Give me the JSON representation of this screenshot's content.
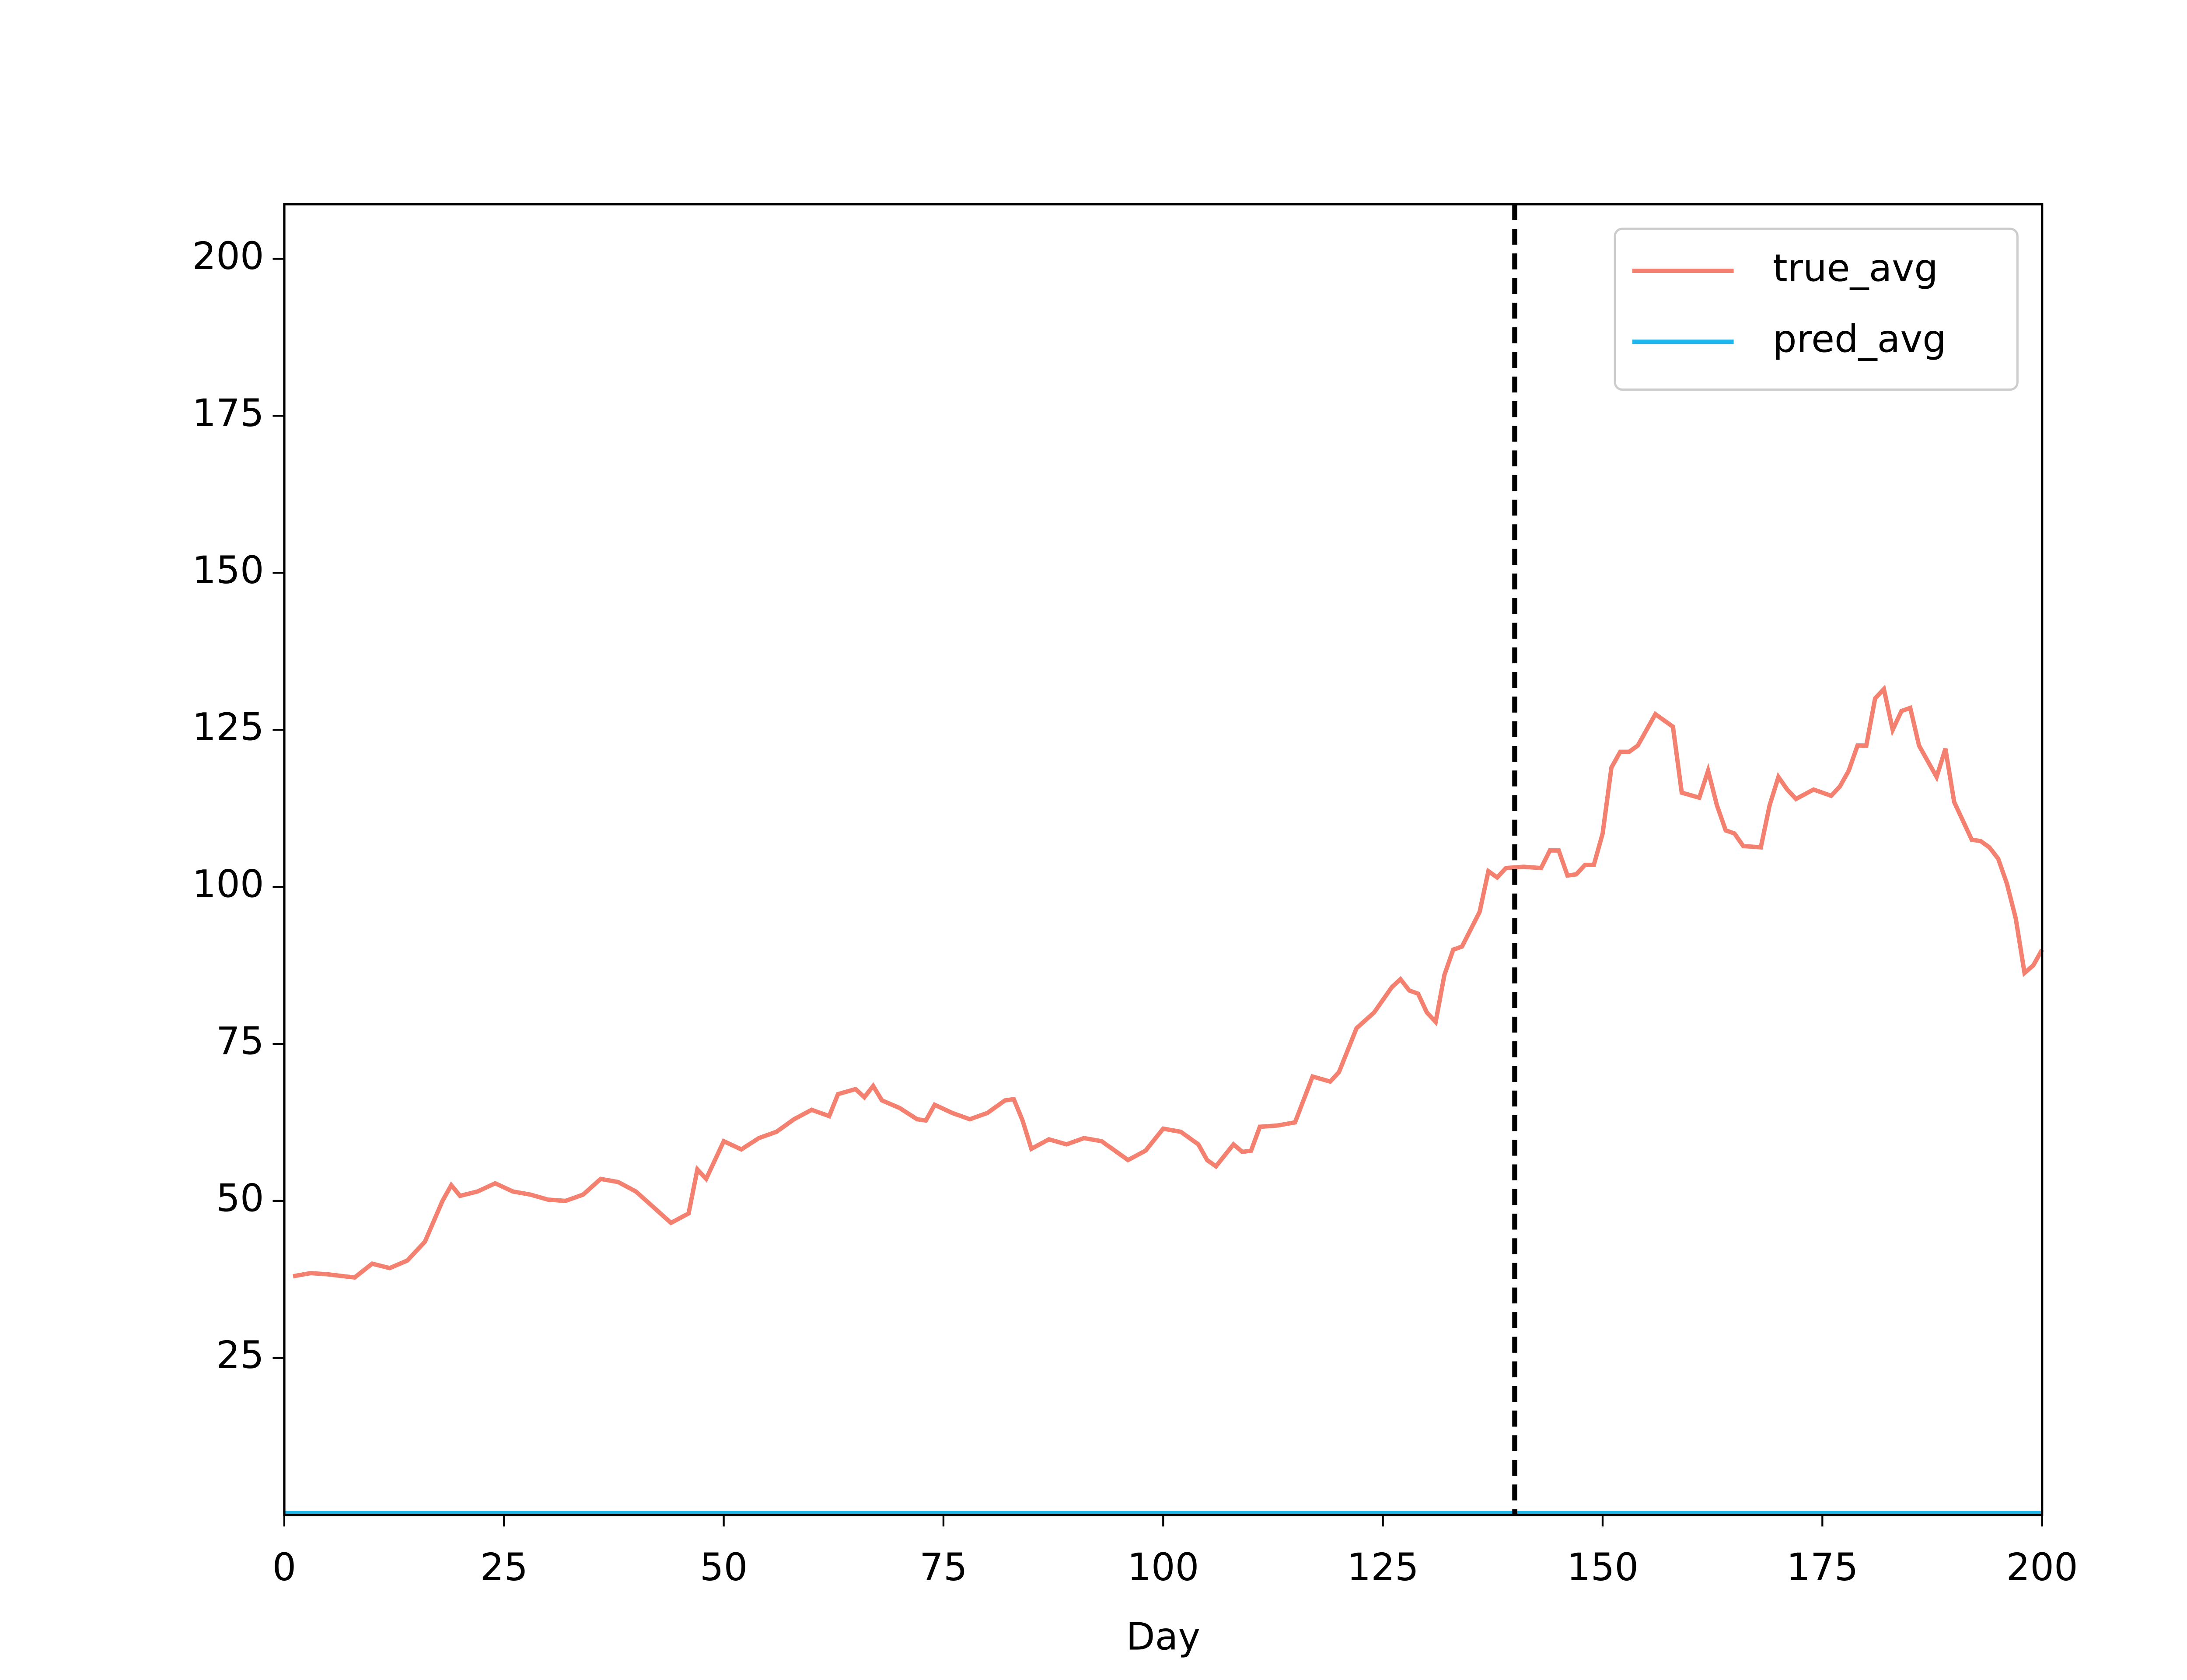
{
  "chart_data": {
    "type": "line",
    "x_label": "Day",
    "xlim": [
      0,
      200
    ],
    "xticks": [
      0,
      25,
      50,
      75,
      100,
      125,
      150,
      175,
      200
    ],
    "ylim": [
      0,
      208.7
    ],
    "yticks": [
      25,
      50,
      75,
      100,
      125,
      150,
      175,
      200
    ],
    "vline": 140,
    "vline_color": "#000000",
    "legend": "upper right",
    "series": [
      {
        "name": "true_avg",
        "color": "#f48070",
        "x": [
          1,
          3,
          5,
          8,
          10,
          12,
          14,
          16,
          18,
          19,
          20,
          22,
          24,
          26,
          28,
          30,
          32,
          34,
          36,
          38,
          40,
          42,
          44,
          46,
          47,
          48,
          50,
          52,
          54,
          56,
          58,
          60,
          62,
          63,
          65,
          66,
          67,
          68,
          70,
          72,
          73,
          74,
          76,
          78,
          80,
          82,
          83,
          84,
          85,
          87,
          89,
          91,
          93,
          95,
          96,
          98,
          100,
          102,
          104,
          105,
          106,
          108,
          109,
          110,
          111,
          113,
          115,
          117,
          119,
          120,
          122,
          124,
          126,
          127,
          128,
          129,
          130,
          131,
          132,
          133,
          134,
          136,
          137,
          138,
          139,
          141,
          143,
          144,
          145,
          146,
          147,
          148,
          149,
          150,
          151,
          152,
          153,
          154,
          156,
          158,
          159,
          161,
          162,
          163,
          164,
          165,
          166,
          168,
          169,
          170,
          171,
          172,
          174,
          176,
          177,
          178,
          179,
          180,
          181,
          182,
          183,
          184,
          185,
          186,
          188,
          189,
          190,
          191,
          192,
          193,
          194,
          195,
          196,
          197,
          198,
          199,
          200
        ],
        "values": [
          38,
          38.5,
          38.3,
          37.8,
          40,
          39.3,
          40.5,
          43.5,
          50,
          52.5,
          50.8,
          51.5,
          52.8,
          51.5,
          51,
          50.2,
          50,
          51,
          53.5,
          53,
          51.5,
          49,
          46.5,
          48,
          55,
          53.5,
          59.5,
          58.2,
          60,
          61,
          63,
          64.5,
          63.5,
          67,
          67.8,
          66.5,
          68.3,
          66,
          64.8,
          63,
          62.8,
          65.3,
          64,
          63,
          64,
          66,
          66.2,
          62.8,
          58.3,
          59.8,
          59,
          60,
          59.5,
          57.5,
          56.5,
          58,
          61.5,
          61,
          59,
          56.5,
          55.5,
          59,
          57.8,
          58,
          61.8,
          62,
          62.5,
          69.8,
          69,
          70.5,
          77.5,
          80,
          84,
          85.3,
          83.5,
          83,
          80,
          78.5,
          86,
          90,
          90.5,
          96,
          102.5,
          101.5,
          103,
          103.2,
          103,
          105.8,
          105.8,
          101.8,
          102,
          103.5,
          103.5,
          108.5,
          119,
          121.5,
          121.5,
          122.5,
          127.5,
          125.5,
          115,
          114.2,
          118.5,
          113,
          109,
          108.5,
          106.5,
          106.3,
          113,
          117.5,
          115.5,
          114,
          115.5,
          114.5,
          116,
          118.5,
          122.5,
          122.5,
          130,
          131.5,
          125,
          128,
          128.5,
          122.5,
          117.5,
          122,
          113.5,
          110.5,
          107.5,
          107.3,
          106.3,
          104.5,
          100.5,
          95,
          86.3,
          87.5,
          90
        ]
      },
      {
        "name": "pred_avg",
        "color": "#1cb8f0",
        "x": [
          0,
          200
        ],
        "values": [
          0.3,
          0.3
        ]
      }
    ]
  }
}
